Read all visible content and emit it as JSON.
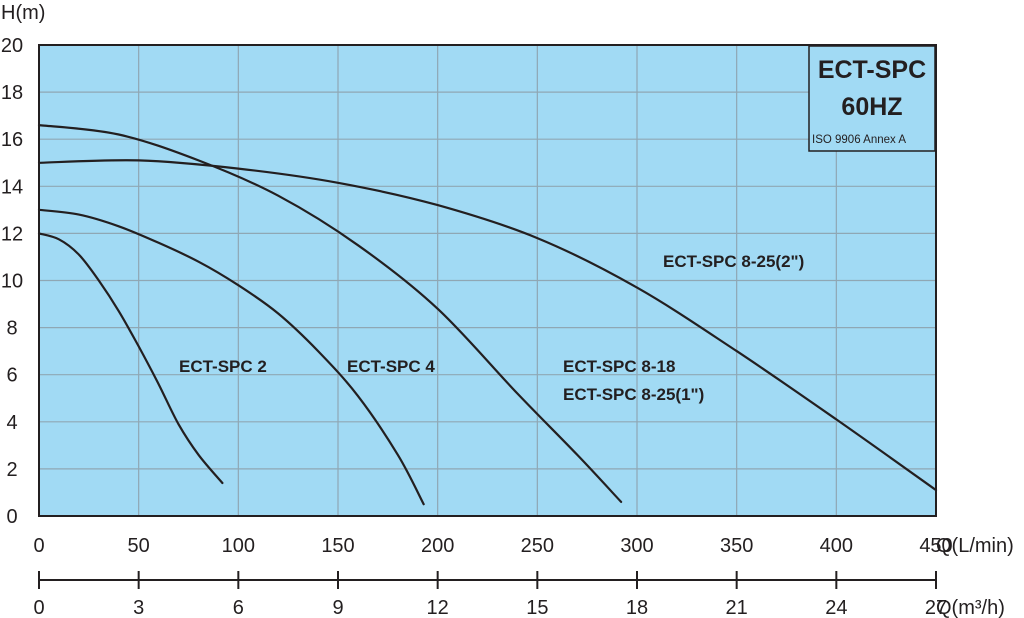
{
  "chart_data": {
    "type": "line",
    "ylabel": "H(m)",
    "xlabel": "Q(L/min)",
    "x2label": "Q(m³/h)",
    "xlim": [
      0,
      450
    ],
    "ylim": [
      0,
      20
    ],
    "x_ticks": [
      0,
      50,
      100,
      150,
      200,
      250,
      300,
      350,
      400,
      450
    ],
    "y_ticks": [
      0,
      2,
      4,
      6,
      8,
      10,
      12,
      14,
      16,
      18,
      20
    ],
    "x2_ticks": [
      0,
      3,
      6,
      9,
      12,
      15,
      18,
      21,
      24,
      27
    ],
    "grid": true,
    "background_color": "#a1daf4",
    "line_color": "#231f20",
    "info_box": {
      "title": "ECT-SPC",
      "subtitle": "60HZ",
      "note": "ISO 9906 Annex A"
    },
    "series": [
      {
        "name": "ECT-SPC 2",
        "x": [
          0,
          10,
          20,
          30,
          40,
          50,
          60,
          70,
          80,
          92
        ],
        "y": [
          12.0,
          11.75,
          11.1,
          10.0,
          8.7,
          7.2,
          5.6,
          3.9,
          2.6,
          1.4
        ]
      },
      {
        "name": "ECT-SPC 4",
        "x": [
          0,
          20,
          40,
          60,
          80,
          100,
          120,
          140,
          160,
          180,
          193
        ],
        "y": [
          13.0,
          12.8,
          12.3,
          11.6,
          10.8,
          9.8,
          8.6,
          7.0,
          5.1,
          2.6,
          0.5
        ]
      },
      {
        "name": "ECT-SPC 8-18",
        "name2": "ECT-SPC 8-25(1\")",
        "x": [
          0,
          40,
          80,
          120,
          160,
          200,
          240,
          270,
          292
        ],
        "y": [
          16.6,
          16.2,
          15.1,
          13.6,
          11.5,
          8.8,
          5.2,
          2.6,
          0.6
        ]
      },
      {
        "name": "ECT-SPC 8-25(2\")",
        "x": [
          0,
          50,
          100,
          150,
          200,
          250,
          300,
          350,
          400,
          450
        ],
        "y": [
          15.0,
          15.1,
          14.75,
          14.15,
          13.2,
          11.8,
          9.7,
          7.0,
          4.1,
          1.1
        ]
      }
    ]
  }
}
